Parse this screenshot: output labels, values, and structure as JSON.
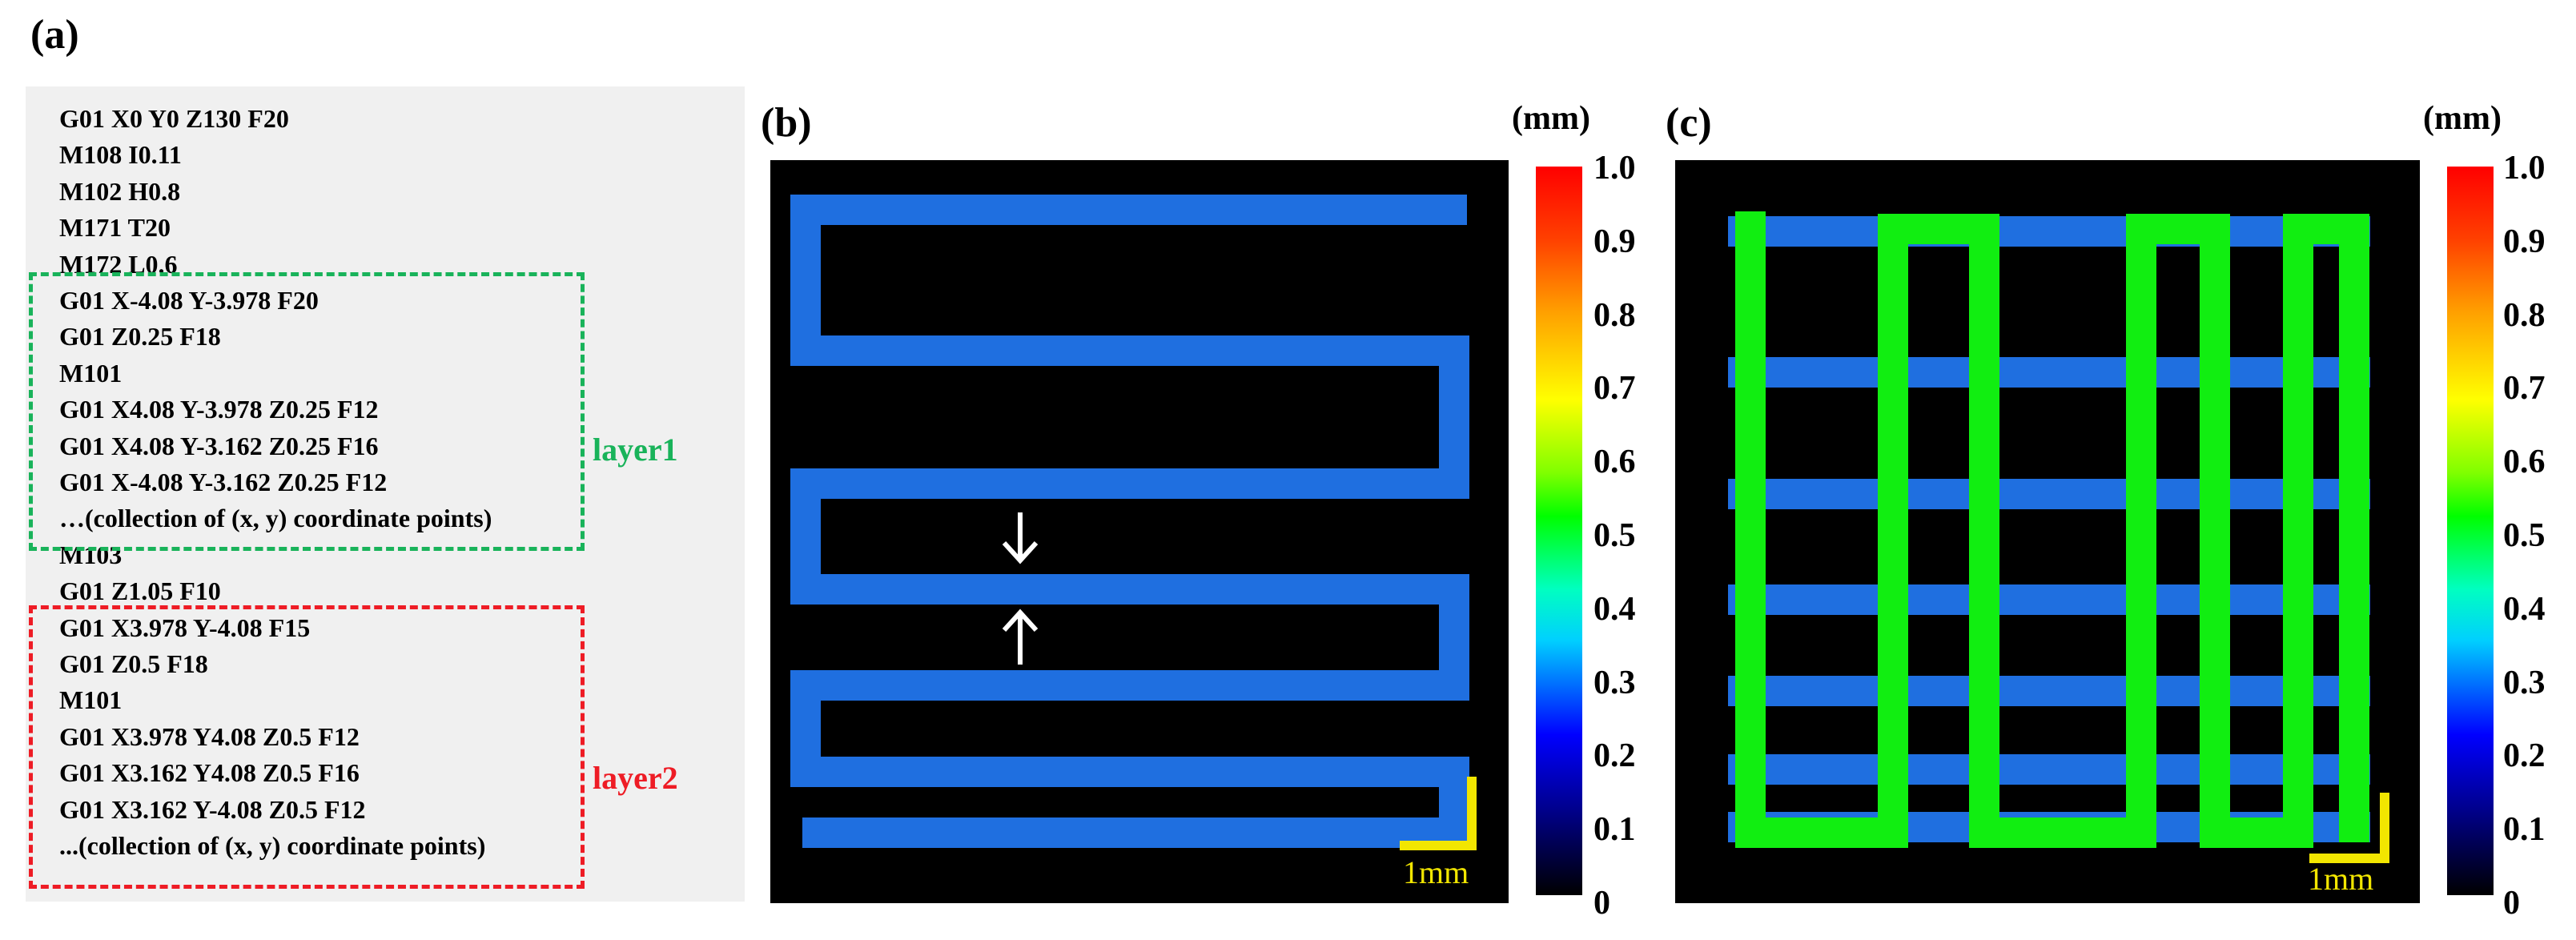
{
  "panels": {
    "a": {
      "label": "(a)"
    },
    "b": {
      "label": "(b)",
      "scale_bar": "1mm",
      "colorbar_unit": "(mm)"
    },
    "c": {
      "label": "(c)",
      "scale_bar": "1mm",
      "colorbar_unit": "(mm)"
    }
  },
  "code_lines": [
    "G01 X0 Y0 Z130 F20",
    "M108 I0.11",
    "M102 H0.8",
    "M171 T20",
    "M172 L0.6",
    "G01 X-4.08 Y-3.978 F20",
    "G01 Z0.25 F18",
    "M101",
    "G01 X4.08 Y-3.978 Z0.25 F12",
    "G01 X4.08 Y-3.162 Z0.25 F16",
    "G01 X-4.08 Y-3.162 Z0.25 F12",
    "…(collection of (x, y) coordinate points)",
    "M103",
    "G01 Z1.05 F10",
    "G01 X3.978 Y-4.08 F15",
    "G01 Z0.5 F18",
    "M101",
    "G01 X3.978 Y4.08 Z0.5 F12",
    "G01 X3.162 Y4.08 Z0.5 F16",
    "G01 X3.162 Y-4.08 Z0.5 F12",
    "...(collection of (x, y) coordinate points)"
  ],
  "layer_labels": {
    "layer1": "layer1",
    "layer2": "layer2"
  },
  "colorbar_ticks": [
    "1.0",
    "0.9",
    "0.8",
    "0.7",
    "0.6",
    "0.5",
    "0.4",
    "0.3",
    "0.2",
    "0.1",
    "0"
  ],
  "colors": {
    "layer1_box": "#19b35a",
    "layer2_box": "#ee1c25",
    "layer1_path": "#1f6fe0",
    "layer2_path": "#11ee11",
    "scale_bar": "#f2e600"
  }
}
